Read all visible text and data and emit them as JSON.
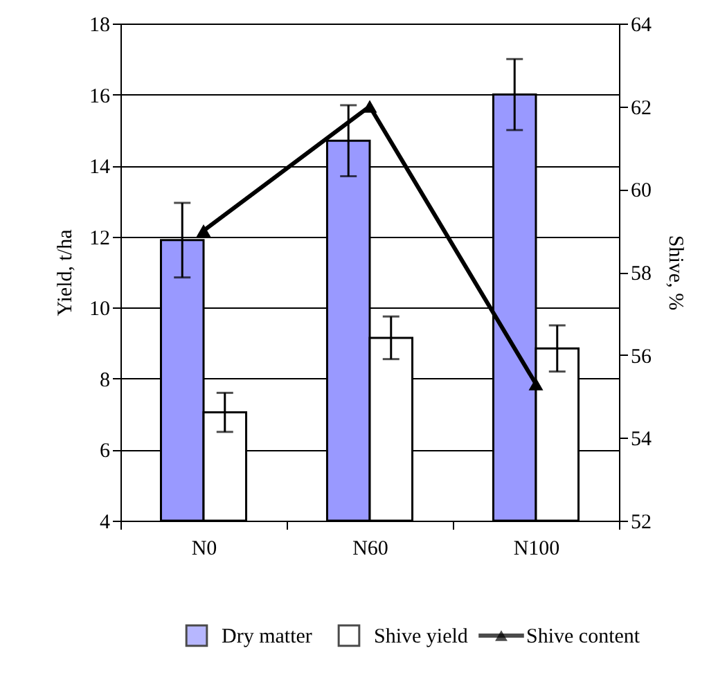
{
  "chart_data": {
    "type": "bar",
    "ylabel": "Yield, t/ha",
    "y2label": "Shive, %",
    "categories": [
      "N0",
      "N60",
      "N100"
    ],
    "series": [
      {
        "name": "Dry matter",
        "color": "#9999ff",
        "values": [
          11.9,
          14.7,
          16.0
        ],
        "errors": [
          1.05,
          1.0,
          1.0
        ]
      },
      {
        "name": "Shive yield",
        "color": "#ffffff",
        "values": [
          7.05,
          9.15,
          8.85
        ],
        "errors": [
          0.55,
          0.6,
          0.65
        ]
      },
      {
        "name": "Shive content",
        "type": "line",
        "axis": "y2",
        "color": "#000000",
        "values": [
          59.0,
          62.0,
          55.3
        ]
      }
    ],
    "ylim": [
      4,
      18
    ],
    "yticks": [
      4,
      6,
      8,
      10,
      12,
      14,
      16,
      18
    ],
    "y2lim": [
      52,
      64
    ],
    "y2ticks": [
      52,
      54,
      56,
      58,
      60,
      62,
      64
    ],
    "grid": "y",
    "legend": "bottom",
    "marker": "triangle",
    "line_style": "solid"
  }
}
